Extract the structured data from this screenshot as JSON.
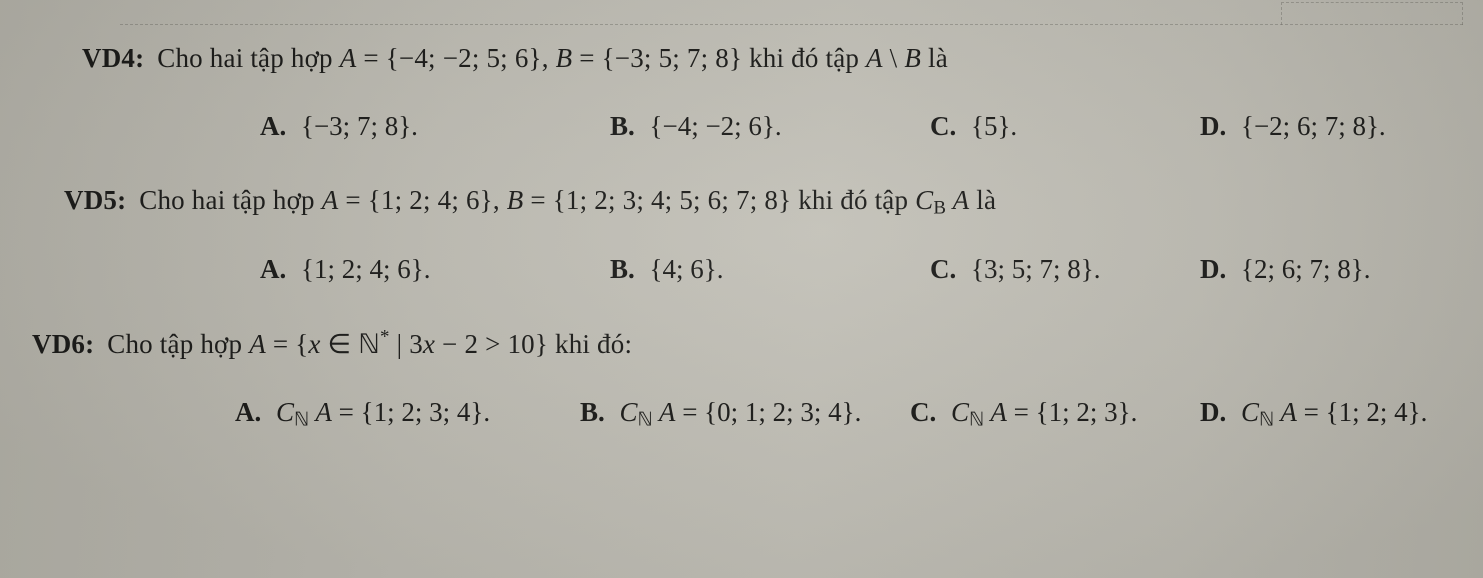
{
  "document": {
    "background_color": "#bdbbb2",
    "text_color": "#1a1a18",
    "font_family": "Times New Roman",
    "base_fontsize_pt": 20
  },
  "questions": [
    {
      "label": "VD4:",
      "stem_html": "Cho hai tập hợp <span class='math'>A</span> <span class='set'>= {−4; −2; 5; 6}</span>, <span class='math'>B</span> <span class='set'>= {−3; 5; 7; 8}</span> khi đó tập <span class='math'>A</span> \\ <span class='math'>B</span> là",
      "options": [
        {
          "letter": "A.",
          "html": "<span class='set'>{−3; 7; 8}</span>."
        },
        {
          "letter": "B.",
          "html": "<span class='set'>{−4; −2; 6}</span>."
        },
        {
          "letter": "C.",
          "html": "<span class='set'>{5}</span>."
        },
        {
          "letter": "D.",
          "html": "<span class='set'>{−2; 6; 7; 8}</span>."
        }
      ]
    },
    {
      "label": "VD5:",
      "stem_html": "Cho hai tập hợp <span class='math'>A</span> <span class='set'>= {1; 2; 4; 6}</span>, <span class='math'>B</span> <span class='set'>= {1; 2; 3; 4; 5; 6; 7; 8}</span> khi đó tập <span class='math'>C<span class='sub'>B</span> A</span> là",
      "options": [
        {
          "letter": "A.",
          "html": "<span class='set'>{1; 2; 4; 6}</span>."
        },
        {
          "letter": "B.",
          "html": "<span class='set'>{4; 6}</span>."
        },
        {
          "letter": "C.",
          "html": "<span class='set'>{3; 5; 7; 8}</span>."
        },
        {
          "letter": "D.",
          "html": "<span class='set'>{2; 6; 7; 8}</span>."
        }
      ]
    },
    {
      "label": "VD6:",
      "stem_html": "Cho tập hợp <span class='math'>A</span> <span class='set'>= {</span><span class='math'>x</span> <span class='rm'>∈</span> <span class='bb'>ℕ</span><span class='sup'>*</span> <span class='rm'>|</span> <span class='rm'>3</span><span class='math'>x</span> − <span class='rm'>2</span> &gt; <span class='rm'>10</span><span class='set'>}</span> khi đó:",
      "options": [
        {
          "letter": "A.",
          "html": "<span class='math'>C<span class='sub rm'>ℕ</span> A</span> <span class='set'>= {1; 2; 3; 4}</span>."
        },
        {
          "letter": "B.",
          "html": "<span class='math'>C<span class='sub rm'>ℕ</span> A</span> <span class='set'>= {0; 1; 2; 3; 4}</span>."
        },
        {
          "letter": "C.",
          "html": "<span class='math'>C<span class='sub rm'>ℕ</span> A</span> <span class='set'>= {1; 2; 3}</span>."
        },
        {
          "letter": "D.",
          "html": "<span class='math'>C<span class='sub rm'>ℕ</span> A</span> <span class='set'>= {1; 2; 4}</span>."
        }
      ]
    }
  ]
}
